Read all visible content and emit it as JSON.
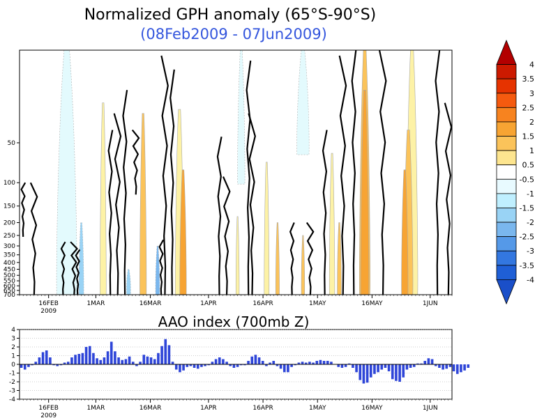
{
  "chart_data": [
    {
      "type": "heatmap",
      "title": "Normalized GPH anomaly (65°S-90°S)",
      "subtitle": "(08Feb2009 - 07Jun2009)",
      "x_start": "2009-02-08",
      "x_end": "2009-06-07",
      "x_ticks": [
        {
          "date": "2009-02-16",
          "label": "16FEB",
          "sublabel": "2009"
        },
        {
          "date": "2009-03-01",
          "label": "1MAR"
        },
        {
          "date": "2009-03-16",
          "label": "16MAR"
        },
        {
          "date": "2009-04-01",
          "label": "1APR"
        },
        {
          "date": "2009-04-16",
          "label": "16APR"
        },
        {
          "date": "2009-05-01",
          "label": "1MAY"
        },
        {
          "date": "2009-05-16",
          "label": "16MAY"
        },
        {
          "date": "2009-06-01",
          "label": "1JUN"
        }
      ],
      "y_scale": "log-pressure",
      "y_range_hpa": [
        700,
        10
      ],
      "y_ticks": [
        "50",
        "100",
        "150",
        "200",
        "250",
        "300",
        "350",
        "400",
        "450",
        "500",
        "550",
        "600",
        "650",
        "700"
      ],
      "colorbar": {
        "labels": [
          "4",
          "3.5",
          "3",
          "2.5",
          "2",
          "1.5",
          "1",
          "0.5",
          "-0.5",
          "-1",
          "-1.5",
          "-2",
          "-2.5",
          "-3",
          "-3.5",
          "-4"
        ],
        "colors": [
          "#b30000",
          "#cc1a00",
          "#e63300",
          "#f55a0f",
          "#f7831f",
          "#f7a433",
          "#fbc35a",
          "#fde58f",
          "#ffffff",
          "#e8faff",
          "#bfefff",
          "#99d3f5",
          "#7ab7ee",
          "#5599e8",
          "#3377e0",
          "#1f5fd6",
          "#1a4fc9"
        ]
      },
      "positive_anomaly_events": [
        {
          "center": "2009-03-03",
          "width_days": 1.5,
          "level": 0.5,
          "top_hpa": 25,
          "bottom_hpa": 700
        },
        {
          "center": "2009-03-14",
          "width_days": 1.6,
          "level": 1.0,
          "top_hpa": 30,
          "bottom_hpa": 700
        },
        {
          "center": "2009-03-24",
          "width_days": 2.0,
          "level": 0.5,
          "top_hpa": 28,
          "bottom_hpa": 700
        },
        {
          "center": "2009-03-25",
          "width_days": 1.6,
          "level": 1.5,
          "top_hpa": 80,
          "bottom_hpa": 700
        },
        {
          "center": "2009-04-09",
          "width_days": 0.8,
          "level": 0.5,
          "top_hpa": 180,
          "bottom_hpa": 700
        },
        {
          "center": "2009-04-17",
          "width_days": 1.2,
          "level": 0.5,
          "top_hpa": 70,
          "bottom_hpa": 700
        },
        {
          "center": "2009-04-20",
          "width_days": 0.9,
          "level": 1.0,
          "top_hpa": 200,
          "bottom_hpa": 700
        },
        {
          "center": "2009-04-27",
          "width_days": 0.8,
          "level": 1.0,
          "top_hpa": 250,
          "bottom_hpa": 700
        },
        {
          "center": "2009-05-05",
          "width_days": 1.3,
          "level": 0.5,
          "top_hpa": 60,
          "bottom_hpa": 700
        },
        {
          "center": "2009-05-07",
          "width_days": 1.0,
          "level": 1.0,
          "top_hpa": 200,
          "bottom_hpa": 700
        },
        {
          "center": "2009-05-14",
          "width_days": 2.6,
          "level": 1.0,
          "top_hpa": 10,
          "bottom_hpa": 700
        },
        {
          "center": "2009-05-14",
          "width_days": 2.0,
          "level": 1.5,
          "top_hpa": 20,
          "bottom_hpa": 700
        },
        {
          "center": "2009-05-27",
          "width_days": 2.8,
          "level": 0.5,
          "top_hpa": 10,
          "bottom_hpa": 700
        },
        {
          "center": "2009-05-26",
          "width_days": 2.2,
          "level": 1.0,
          "top_hpa": 40,
          "bottom_hpa": 700
        },
        {
          "center": "2009-05-25",
          "width_days": 1.6,
          "level": 1.5,
          "top_hpa": 80,
          "bottom_hpa": 700
        }
      ],
      "negative_anomaly_events": [
        {
          "center": "2009-02-21",
          "width_days": 5.0,
          "level": -0.5,
          "top_hpa": 10,
          "bottom_hpa": 700
        },
        {
          "center": "2009-02-25",
          "width_days": 1.2,
          "level": -1.0,
          "top_hpa": 200,
          "bottom_hpa": 700
        },
        {
          "center": "2009-03-10",
          "width_days": 1.0,
          "level": -1.0,
          "top_hpa": 450,
          "bottom_hpa": 700
        },
        {
          "center": "2009-03-18",
          "width_days": 1.0,
          "level": -1.5,
          "top_hpa": 300,
          "bottom_hpa": 700
        },
        {
          "center": "2009-04-10",
          "width_days": 1.8,
          "level": -0.5,
          "top_hpa": 10,
          "bottom_hpa": 100
        },
        {
          "center": "2009-04-27",
          "width_days": 3.0,
          "level": -0.5,
          "top_hpa": 10,
          "bottom_hpa": 60
        }
      ]
    },
    {
      "type": "bar",
      "title": "AAO index (700mb Z)",
      "ylim": [
        -4,
        4
      ],
      "y_ticks": [
        "4",
        "3",
        "2",
        "1",
        "0",
        "-1",
        "-2",
        "-3",
        "-4"
      ],
      "x_ticks": [
        "16FEB",
        "1MAR",
        "16MAR",
        "1APR",
        "16APR",
        "1MAY",
        "16MAY",
        "1JUN"
      ],
      "x_tick_sublabel": "2009",
      "bar_color": "#2e45d8",
      "values": [
        -0.4,
        -0.6,
        -0.3,
        -0.1,
        0.3,
        0.8,
        1.4,
        1.6,
        0.8,
        -0.1,
        -0.2,
        -0.1,
        0.2,
        0.3,
        0.8,
        1.1,
        1.2,
        1.3,
        2.0,
        2.1,
        1.3,
        0.7,
        0.5,
        0.8,
        1.5,
        2.6,
        1.5,
        0.8,
        0.5,
        0.6,
        0.9,
        0.3,
        -0.2,
        0.3,
        1.1,
        0.9,
        0.8,
        0.6,
        1.3,
        2.1,
        2.9,
        2.2,
        0.3,
        -0.6,
        -0.9,
        -0.7,
        -0.3,
        -0.2,
        -0.4,
        -0.5,
        -0.3,
        -0.2,
        -0.1,
        0.3,
        0.6,
        0.8,
        0.6,
        0.3,
        -0.2,
        -0.4,
        -0.3,
        -0.1,
        -0.1,
        0.4,
        0.9,
        1.1,
        0.8,
        0.4,
        -0.2,
        0.2,
        0.4,
        -0.2,
        -0.5,
        -0.9,
        -0.9,
        -0.3,
        -0.1,
        0.2,
        0.3,
        0.2,
        0.3,
        0.2,
        0.4,
        0.5,
        0.4,
        0.4,
        0.3,
        0.0,
        -0.3,
        -0.4,
        -0.3,
        0.1,
        -0.4,
        -0.9,
        -1.8,
        -2.2,
        -2.1,
        -1.5,
        -1.1,
        -0.9,
        -0.6,
        -0.4,
        -0.8,
        -1.7,
        -1.9,
        -2.0,
        -1.5,
        -0.6,
        -0.4,
        -0.3,
        0.1,
        0.1,
        0.4,
        0.7,
        0.6,
        -0.2,
        -0.4,
        -0.6,
        -0.5,
        -0.3,
        -0.8,
        -1.1,
        -0.9,
        -0.7,
        -0.4
      ]
    }
  ]
}
